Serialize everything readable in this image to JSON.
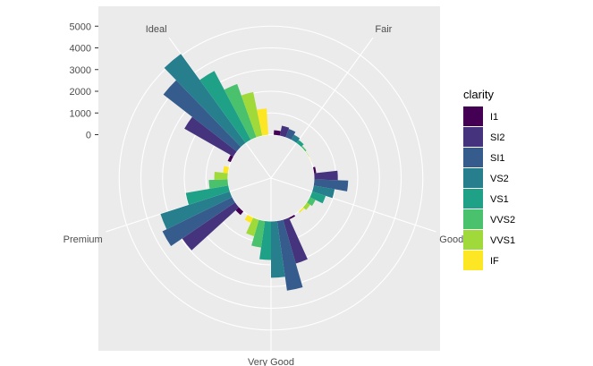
{
  "chart_data": {
    "type": "bar",
    "coord": "polar",
    "categories": [
      "Fair",
      "Good",
      "Very Good",
      "Premium",
      "Ideal"
    ],
    "legend_title": "clarity",
    "legend_position": "right",
    "yticks": [
      0,
      1000,
      2000,
      3000,
      4000,
      5000
    ],
    "ylim": [
      -2000,
      6000
    ],
    "grid": true,
    "series": [
      {
        "name": "I1",
        "color": "#440154",
        "values": [
          210,
          96,
          84,
          205,
          146
        ]
      },
      {
        "name": "SI2",
        "color": "#46337E",
        "values": [
          466,
          1081,
          2100,
          2949,
          2598
        ]
      },
      {
        "name": "SI1",
        "color": "#365C8D",
        "values": [
          408,
          1560,
          3240,
          3575,
          4282
        ]
      },
      {
        "name": "VS2",
        "color": "#277F8E",
        "values": [
          261,
          978,
          2591,
          3357,
          5071
        ]
      },
      {
        "name": "VS1",
        "color": "#1FA187",
        "values": [
          170,
          648,
          1775,
          1989,
          3589
        ]
      },
      {
        "name": "VVS2",
        "color": "#4AC16D",
        "values": [
          69,
          286,
          1235,
          870,
          2606
        ]
      },
      {
        "name": "VVS1",
        "color": "#9FDA3A",
        "values": [
          17,
          186,
          789,
          616,
          2047
        ]
      },
      {
        "name": "IF",
        "color": "#FDE725",
        "values": [
          9,
          71,
          268,
          230,
          1212
        ]
      }
    ]
  }
}
